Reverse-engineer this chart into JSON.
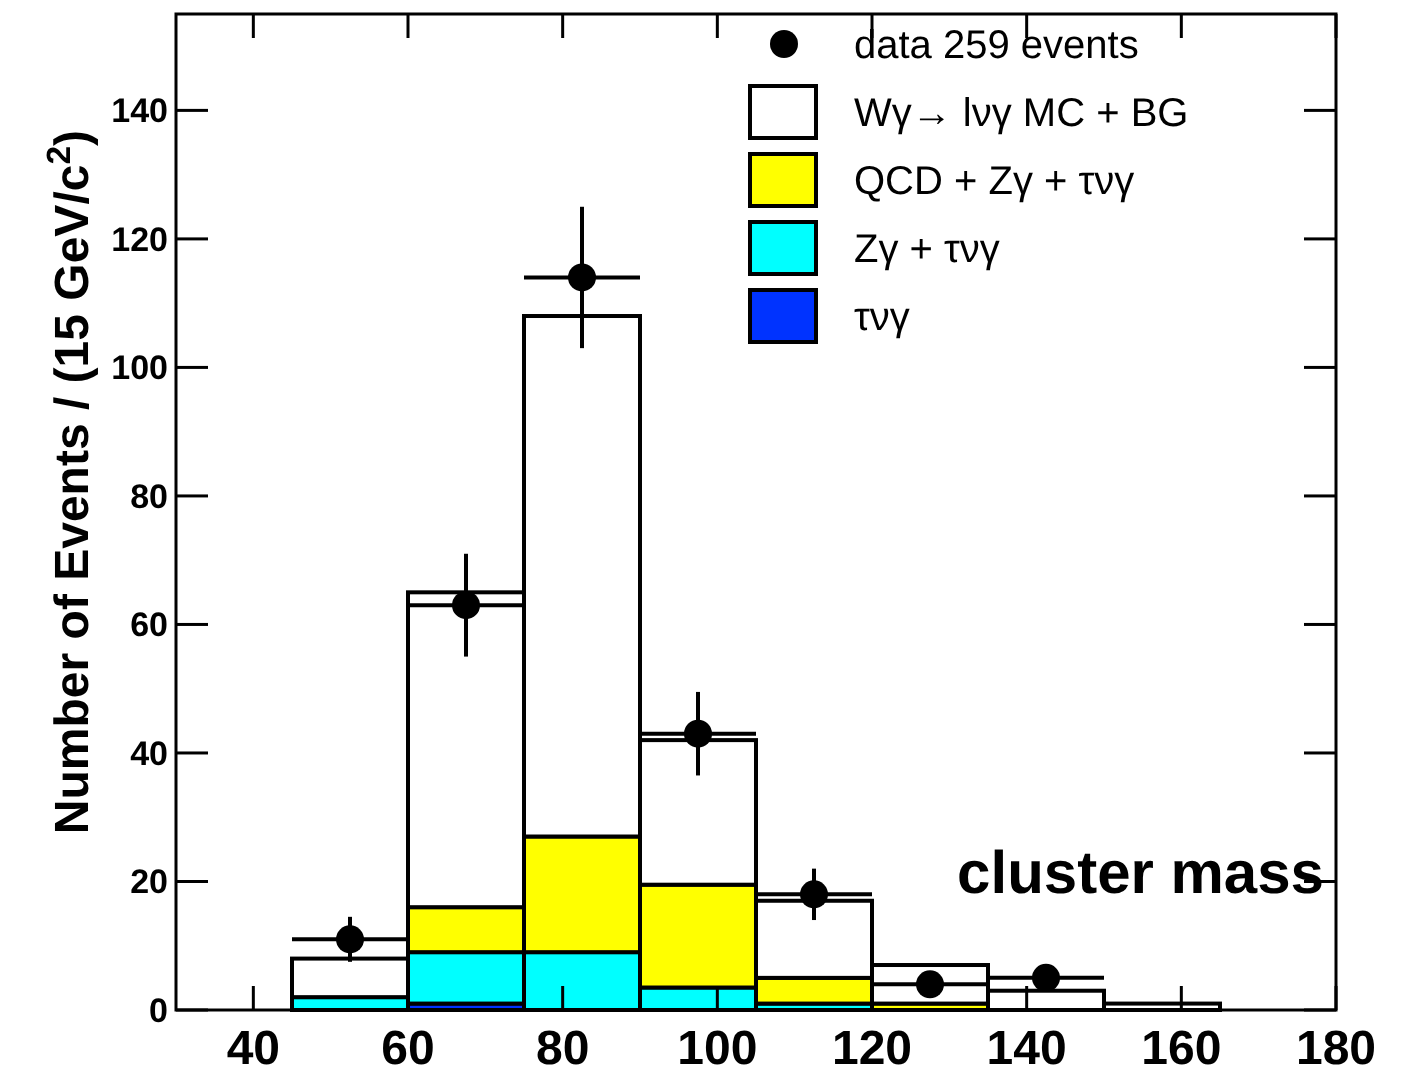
{
  "chart_data": {
    "type": "bar",
    "ylabel": "Number of Events / (15 GeV/c$^{2}$)",
    "x": [
      37.5,
      52.5,
      67.5,
      82.5,
      97.5,
      112.5,
      127.5,
      142.5,
      157.5,
      172.5
    ],
    "stacked": true,
    "legend": "top right",
    "xlim": [
      30,
      180
    ],
    "ylim": [
      0,
      155
    ],
    "xticks": [
      40,
      60,
      80,
      100,
      120,
      140,
      160,
      180
    ],
    "yticks": [
      0,
      20,
      40,
      60,
      80,
      100,
      120,
      140
    ],
    "annotations": [
      "cluster mass"
    ],
    "series": [
      {
        "name": "data 259 events",
        "type": "scatter",
        "marker": "circle",
        "color": "#000000",
        "x": [
          52.5,
          67.5,
          82.5,
          97.5,
          112.5,
          127.5,
          142.5
        ],
        "values": [
          11,
          63,
          114,
          43,
          18,
          4,
          5
        ],
        "errors": [
          3.5,
          8,
          11,
          6.5,
          4,
          2,
          2
        ],
        "xerrors": [
          7.5,
          7.5,
          7.5,
          7.5,
          7.5,
          7.5,
          7.5
        ]
      },
      {
        "name": "τνγ",
        "color": "#0033ff",
        "values": [
          0,
          0,
          1,
          0,
          0,
          0,
          0,
          0,
          0,
          0
        ]
      },
      {
        "name": "Zγ + τνγ",
        "color": "#00ffff",
        "values": [
          0,
          2,
          8,
          9,
          3.5,
          1,
          0,
          0,
          0,
          0
        ]
      },
      {
        "name": "QCD + Zγ + τνγ",
        "color": "#ffff00",
        "values": [
          0,
          0,
          7,
          18,
          16,
          4,
          1,
          0,
          0,
          0
        ]
      },
      {
        "name": "Wγ→ lνγ MC + BG",
        "color": "#ffffff",
        "values": [
          0,
          6,
          49,
          81,
          22.5,
          12,
          6,
          3,
          1,
          0
        ]
      }
    ]
  }
}
